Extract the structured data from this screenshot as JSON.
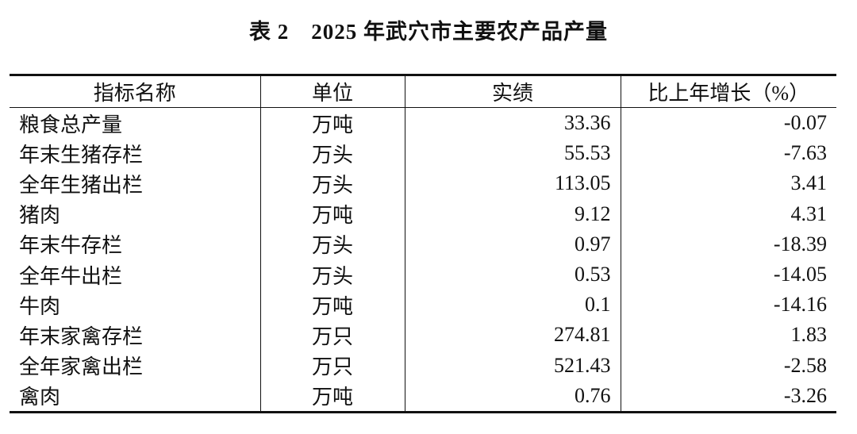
{
  "title": "表 2　2025 年武穴市主要农产品产量",
  "table": {
    "header": [
      "指标名称",
      "单位",
      "实绩",
      "比上年增长（%）"
    ],
    "rows": [
      [
        "粮食总产量",
        "万吨",
        "33.36",
        "-0.07"
      ],
      [
        "年末生猪存栏",
        "万头",
        "55.53",
        "-7.63"
      ],
      [
        "全年生猪出栏",
        "万头",
        "113.05",
        "3.41"
      ],
      [
        "猪肉",
        "万吨",
        "9.12",
        "4.31"
      ],
      [
        "年末牛存栏",
        "万头",
        "0.97",
        "-18.39"
      ],
      [
        "全年牛出栏",
        "万头",
        "0.53",
        "-14.05"
      ],
      [
        "牛肉",
        "万吨",
        "0.1",
        "-14.16"
      ],
      [
        "年末家禽存栏",
        "万只",
        "274.81",
        "1.83"
      ],
      [
        "全年家禽出栏",
        "万只",
        "521.43",
        "-2.58"
      ],
      [
        "禽肉",
        "万吨",
        "0.76",
        "-3.26"
      ]
    ]
  }
}
